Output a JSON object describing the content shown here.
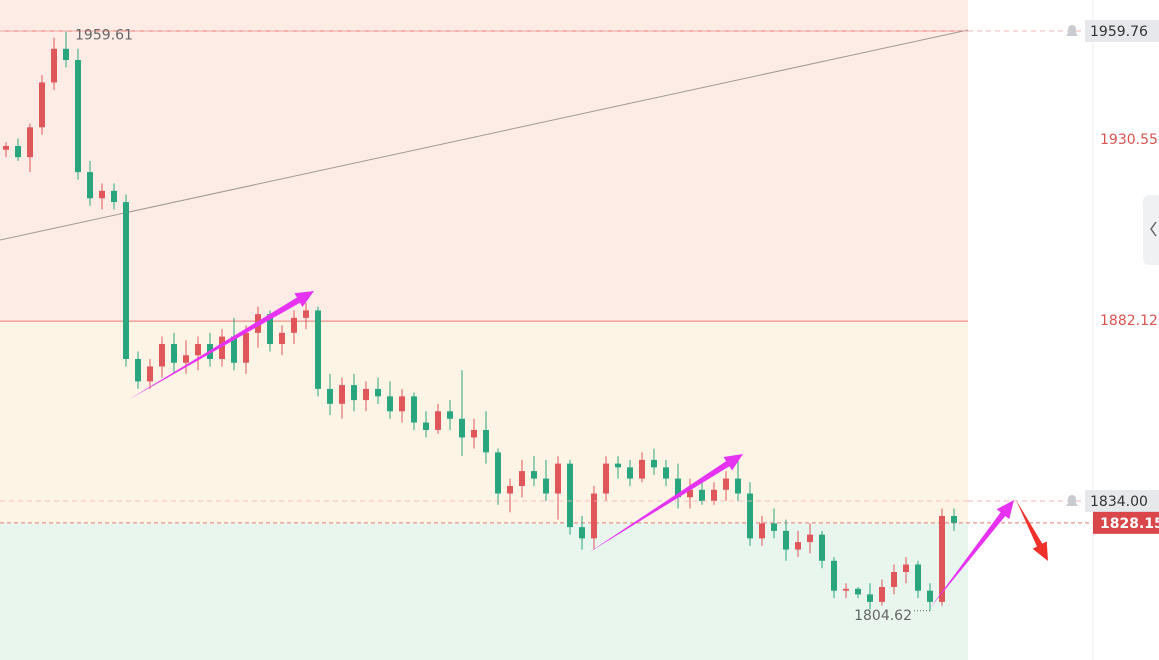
{
  "chart_data": {
    "type": "candlestick",
    "ylim": [
      1791.45,
      1968.06
    ],
    "yticks": [
      1930.55,
      1882.12
    ],
    "zone_levels": [
      1959.76,
      1882.12,
      1828.15
    ],
    "zone_colors": [
      "#fdece6",
      "#fdf4e6",
      "#e8f6ee"
    ],
    "price_lines": [
      1959.76,
      {
        "value": 1834,
        "label": "1834.00"
      }
    ],
    "last_price": 1828.15,
    "up_color": "#e0575b",
    "down_color": "#2aa67f",
    "candles": [
      [
        1928,
        1930,
        1926,
        1929
      ],
      [
        1929,
        1931,
        1925,
        1926
      ],
      [
        1926,
        1935,
        1922,
        1934
      ],
      [
        1934,
        1948,
        1932,
        1946
      ],
      [
        1946,
        1958,
        1944,
        1955
      ],
      [
        1955,
        1959.61,
        1950,
        1952
      ],
      [
        1952,
        1955,
        1920,
        1922
      ],
      [
        1922,
        1925,
        1913,
        1915
      ],
      [
        1915,
        1919,
        1912,
        1917
      ],
      [
        1917,
        1919,
        1912,
        1914
      ],
      [
        1914,
        1916,
        1870,
        1872
      ],
      [
        1872,
        1874,
        1864,
        1866
      ],
      [
        1866,
        1872,
        1864,
        1870
      ],
      [
        1870,
        1878,
        1867,
        1876
      ],
      [
        1876,
        1879,
        1868,
        1871
      ],
      [
        1871,
        1877,
        1868,
        1873
      ],
      [
        1873,
        1878,
        1869,
        1876
      ],
      [
        1876,
        1879,
        1870,
        1872
      ],
      [
        1872,
        1880,
        1870,
        1878
      ],
      [
        1878,
        1883,
        1869,
        1871
      ],
      [
        1871,
        1881,
        1868,
        1879
      ],
      [
        1879,
        1886,
        1875,
        1884
      ],
      [
        1884,
        1885,
        1874,
        1876
      ],
      [
        1876,
        1881,
        1873,
        1879
      ],
      [
        1879,
        1885,
        1876,
        1883
      ],
      [
        1883,
        1887,
        1880,
        1885
      ],
      [
        1885,
        1886,
        1862,
        1864
      ],
      [
        1864,
        1868,
        1857,
        1860
      ],
      [
        1860,
        1867,
        1856,
        1865
      ],
      [
        1865,
        1868,
        1858,
        1861
      ],
      [
        1861,
        1866,
        1858,
        1864
      ],
      [
        1864,
        1867,
        1860,
        1862
      ],
      [
        1862,
        1866,
        1856,
        1858
      ],
      [
        1858,
        1864,
        1855,
        1862
      ],
      [
        1862,
        1863,
        1853,
        1855
      ],
      [
        1855,
        1858,
        1851,
        1853
      ],
      [
        1853,
        1860,
        1852,
        1858
      ],
      [
        1858,
        1861,
        1853,
        1856
      ],
      [
        1856,
        1869,
        1846,
        1851
      ],
      [
        1851,
        1856,
        1848,
        1853
      ],
      [
        1853,
        1858,
        1844,
        1847
      ],
      [
        1847,
        1848,
        1833,
        1836
      ],
      [
        1836,
        1840,
        1831,
        1838
      ],
      [
        1838,
        1845,
        1835,
        1842
      ],
      [
        1842,
        1846,
        1838,
        1840
      ],
      [
        1840,
        1845,
        1834,
        1836
      ],
      [
        1836,
        1846,
        1829,
        1844
      ],
      [
        1844,
        1845,
        1825,
        1827
      ],
      [
        1827,
        1830,
        1821,
        1824
      ],
      [
        1824,
        1838,
        1821,
        1836
      ],
      [
        1836,
        1846,
        1834,
        1844
      ],
      [
        1844,
        1846,
        1840,
        1843
      ],
      [
        1843,
        1845,
        1838,
        1840
      ],
      [
        1840,
        1847,
        1839,
        1845
      ],
      [
        1845,
        1848,
        1841,
        1843
      ],
      [
        1843,
        1845,
        1838,
        1840
      ],
      [
        1840,
        1844,
        1832,
        1835
      ],
      [
        1835,
        1840,
        1832,
        1837
      ],
      [
        1837,
        1840,
        1833,
        1834
      ],
      [
        1834,
        1839,
        1833,
        1837
      ],
      [
        1837,
        1842,
        1834,
        1840
      ],
      [
        1840,
        1846,
        1834,
        1836
      ],
      [
        1836,
        1839,
        1822,
        1824
      ],
      [
        1824,
        1830,
        1822,
        1828
      ],
      [
        1828,
        1832,
        1824,
        1826
      ],
      [
        1826,
        1829,
        1818,
        1821
      ],
      [
        1821,
        1826,
        1819,
        1823
      ],
      [
        1823,
        1828,
        1820,
        1825
      ],
      [
        1825,
        1826,
        1816,
        1818
      ],
      [
        1818,
        1819,
        1808,
        1810
      ],
      [
        1810,
        1812,
        1808,
        1810.5
      ],
      [
        1810.5,
        1811,
        1808,
        1809
      ],
      [
        1809,
        1812,
        1805,
        1807
      ],
      [
        1807,
        1813,
        1806,
        1811
      ],
      [
        1811,
        1817,
        1809,
        1815
      ],
      [
        1815,
        1819,
        1812,
        1817
      ],
      [
        1817,
        1818,
        1808,
        1810
      ],
      [
        1810,
        1812,
        1804.62,
        1807
      ],
      [
        1807,
        1832,
        1806,
        1830
      ],
      [
        1830,
        1832,
        1826,
        1828.15
      ]
    ]
  }
}
